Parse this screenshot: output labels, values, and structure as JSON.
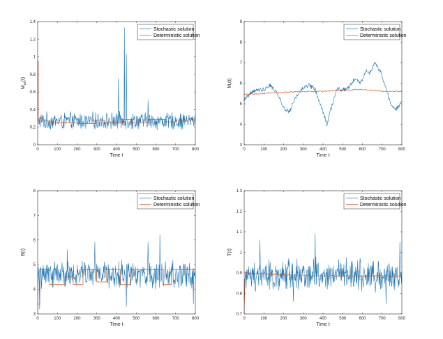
{
  "colors": {
    "stochastic": "#1f77b4",
    "deterministic": "#d9531e",
    "axis": "#262626"
  },
  "chart_data": [
    {
      "type": "line",
      "ylabel": "M_cs(t)",
      "ylabel_main": "M",
      "ylabel_sub": "cs",
      "ylabel_arg": "(t)",
      "xlabel": "Time t",
      "xlim": [
        0,
        800
      ],
      "ylim": [
        0,
        1.4
      ],
      "xticks": [
        0,
        100,
        200,
        300,
        400,
        500,
        600,
        700,
        800
      ],
      "xtick_labels": [
        "0",
        "100",
        "200",
        "300",
        "400",
        "500",
        "600",
        "700",
        "800"
      ],
      "yticks": [
        0,
        0.2,
        0.4,
        0.6,
        0.8,
        1,
        1.2,
        1.4
      ],
      "ytick_labels": [
        "0",
        "0.2",
        "0.4",
        "0.6",
        "0.8",
        "1",
        "1.2",
        "1.4"
      ],
      "legend": [
        "Stochastic solution",
        "Deterministic solution"
      ],
      "series": [
        {
          "name": "Stochastic solution",
          "kind": "noise",
          "base": 0.27,
          "amp": 0.08,
          "start": 1.0,
          "spikes": [
            [
              375,
              0.78
            ],
            [
              410,
              0.75
            ],
            [
              425,
              0.95
            ],
            [
              440,
              1.33
            ],
            [
              450,
              1.03
            ],
            [
              365,
              0.59
            ],
            [
              305,
              0.53
            ],
            [
              560,
              0.5
            ],
            [
              745,
              0.55
            ]
          ]
        },
        {
          "name": "Deterministic solution",
          "kind": "steps",
          "start": 0.95,
          "levels": [
            [
              0,
              0.95
            ],
            [
              3,
              0.27
            ],
            [
              60,
              0.25
            ],
            [
              200,
              0.24
            ],
            [
              290,
              0.28
            ],
            [
              340,
              0.25
            ],
            [
              430,
              0.29
            ],
            [
              480,
              0.25
            ],
            [
              560,
              0.29
            ],
            [
              650,
              0.26
            ],
            [
              700,
              0.28
            ],
            [
              800,
              0.28
            ]
          ]
        }
      ]
    },
    {
      "type": "line",
      "ylabel": "M_r(t)",
      "ylabel_main": "M",
      "ylabel_sub": "r",
      "ylabel_arg": "(t)",
      "xlabel": "Time t",
      "xlim": [
        0,
        800
      ],
      "ylim": [
        3,
        9
      ],
      "xticks": [
        0,
        100,
        200,
        300,
        400,
        500,
        600,
        700,
        800
      ],
      "xtick_labels": [
        "0",
        "100",
        "200",
        "300",
        "400",
        "500",
        "600",
        "700",
        "800"
      ],
      "yticks": [
        3,
        4,
        5,
        6,
        7,
        8,
        9
      ],
      "ytick_labels": [
        "3",
        "4",
        "5",
        "6",
        "7",
        "8",
        "9"
      ],
      "legend": [
        "Stochastic solution",
        "Deterministic solution"
      ],
      "series": [
        {
          "name": "Stochastic solution",
          "kind": "walk",
          "amp": 0.1,
          "anchors": [
            [
              0,
              5.2
            ],
            [
              40,
              5.6
            ],
            [
              100,
              5.7
            ],
            [
              130,
              5.9
            ],
            [
              170,
              5.5
            ],
            [
              200,
              4.8
            ],
            [
              230,
              4.6
            ],
            [
              260,
              5.3
            ],
            [
              300,
              5.8
            ],
            [
              330,
              5.9
            ],
            [
              360,
              5.7
            ],
            [
              390,
              4.9
            ],
            [
              420,
              4.0
            ],
            [
              445,
              4.9
            ],
            [
              470,
              5.7
            ],
            [
              520,
              5.7
            ],
            [
              560,
              6.2
            ],
            [
              590,
              6.0
            ],
            [
              620,
              6.6
            ],
            [
              640,
              6.5
            ],
            [
              660,
              7.0
            ],
            [
              690,
              6.6
            ],
            [
              720,
              5.7
            ],
            [
              745,
              5.0
            ],
            [
              770,
              4.7
            ],
            [
              800,
              5.1
            ]
          ]
        },
        {
          "name": "Deterministic solution",
          "kind": "smooth",
          "anchors": [
            [
              0,
              5.45
            ],
            [
              100,
              5.5
            ],
            [
              200,
              5.55
            ],
            [
              300,
              5.6
            ],
            [
              400,
              5.6
            ],
            [
              500,
              5.65
            ],
            [
              600,
              5.7
            ],
            [
              700,
              5.6
            ],
            [
              800,
              5.6
            ]
          ]
        }
      ]
    },
    {
      "type": "line",
      "ylabel": "B(t)",
      "ylabel_main": "B(t)",
      "ylabel_sub": "",
      "ylabel_arg": "",
      "xlabel": "Time t",
      "xlim": [
        0,
        800
      ],
      "ylim": [
        3,
        8
      ],
      "xticks": [
        0,
        100,
        200,
        300,
        400,
        500,
        600,
        700,
        800
      ],
      "xtick_labels": [
        "0",
        "100",
        "200",
        "300",
        "400",
        "500",
        "600",
        "700",
        "800"
      ],
      "yticks": [
        3,
        4,
        5,
        6,
        7,
        8
      ],
      "ytick_labels": [
        "3",
        "4",
        "5",
        "6",
        "7",
        "8"
      ],
      "legend": [
        "Stochastic solution",
        "Deterministic solution"
      ],
      "series": [
        {
          "name": "Stochastic solution",
          "kind": "noise",
          "base": 4.6,
          "amp": 0.45,
          "start": 3.1,
          "spikes": [
            [
              620,
              6.2
            ],
            [
              560,
              5.9
            ],
            [
              290,
              5.9
            ],
            [
              150,
              5.6
            ],
            [
              450,
              3.3
            ],
            [
              790,
              3.4
            ],
            [
              10,
              3.2
            ]
          ]
        },
        {
          "name": "Deterministic solution",
          "kind": "steps",
          "start": 3.4,
          "levels": [
            [
              0,
              3.4
            ],
            [
              10,
              4.8
            ],
            [
              60,
              4.2
            ],
            [
              140,
              4.5
            ],
            [
              180,
              4.2
            ],
            [
              230,
              4.8
            ],
            [
              300,
              4.3
            ],
            [
              350,
              4.8
            ],
            [
              420,
              4.2
            ],
            [
              470,
              4.8
            ],
            [
              640,
              4.2
            ],
            [
              680,
              4.8
            ],
            [
              800,
              4.8
            ]
          ]
        }
      ]
    },
    {
      "type": "line",
      "ylabel": "T(t)",
      "ylabel_main": "T(t)",
      "ylabel_sub": "",
      "ylabel_arg": "",
      "xlabel": "Time t",
      "xlim": [
        0,
        800
      ],
      "ylim": [
        0.7,
        1.3
      ],
      "xticks": [
        0,
        100,
        200,
        300,
        400,
        500,
        600,
        700,
        800
      ],
      "xtick_labels": [
        "0",
        "100",
        "200",
        "300",
        "400",
        "500",
        "600",
        "700",
        "800"
      ],
      "yticks": [
        0.7,
        0.8,
        0.9,
        1,
        1.1,
        1.2,
        1.3
      ],
      "ytick_labels": [
        "0.7",
        "0.8",
        "0.9",
        "1",
        "1.1",
        "1.2",
        "1.3"
      ],
      "legend": [
        "Stochastic solution",
        "Deterministic solution"
      ],
      "series": [
        {
          "name": "Stochastic solution",
          "kind": "noise",
          "base": 0.89,
          "amp": 0.065,
          "start": 0.7,
          "spikes": [
            [
              360,
              1.09
            ],
            [
              720,
              0.75
            ],
            [
              790,
              1.05
            ],
            [
              80,
              1.06
            ],
            [
              250,
              0.76
            ]
          ]
        },
        {
          "name": "Deterministic solution",
          "kind": "smooth",
          "anchors": [
            [
              0,
              0.71
            ],
            [
              5,
              0.9
            ],
            [
              200,
              0.89
            ],
            [
              400,
              0.885
            ],
            [
              600,
              0.885
            ],
            [
              800,
              0.885
            ]
          ]
        }
      ]
    }
  ]
}
